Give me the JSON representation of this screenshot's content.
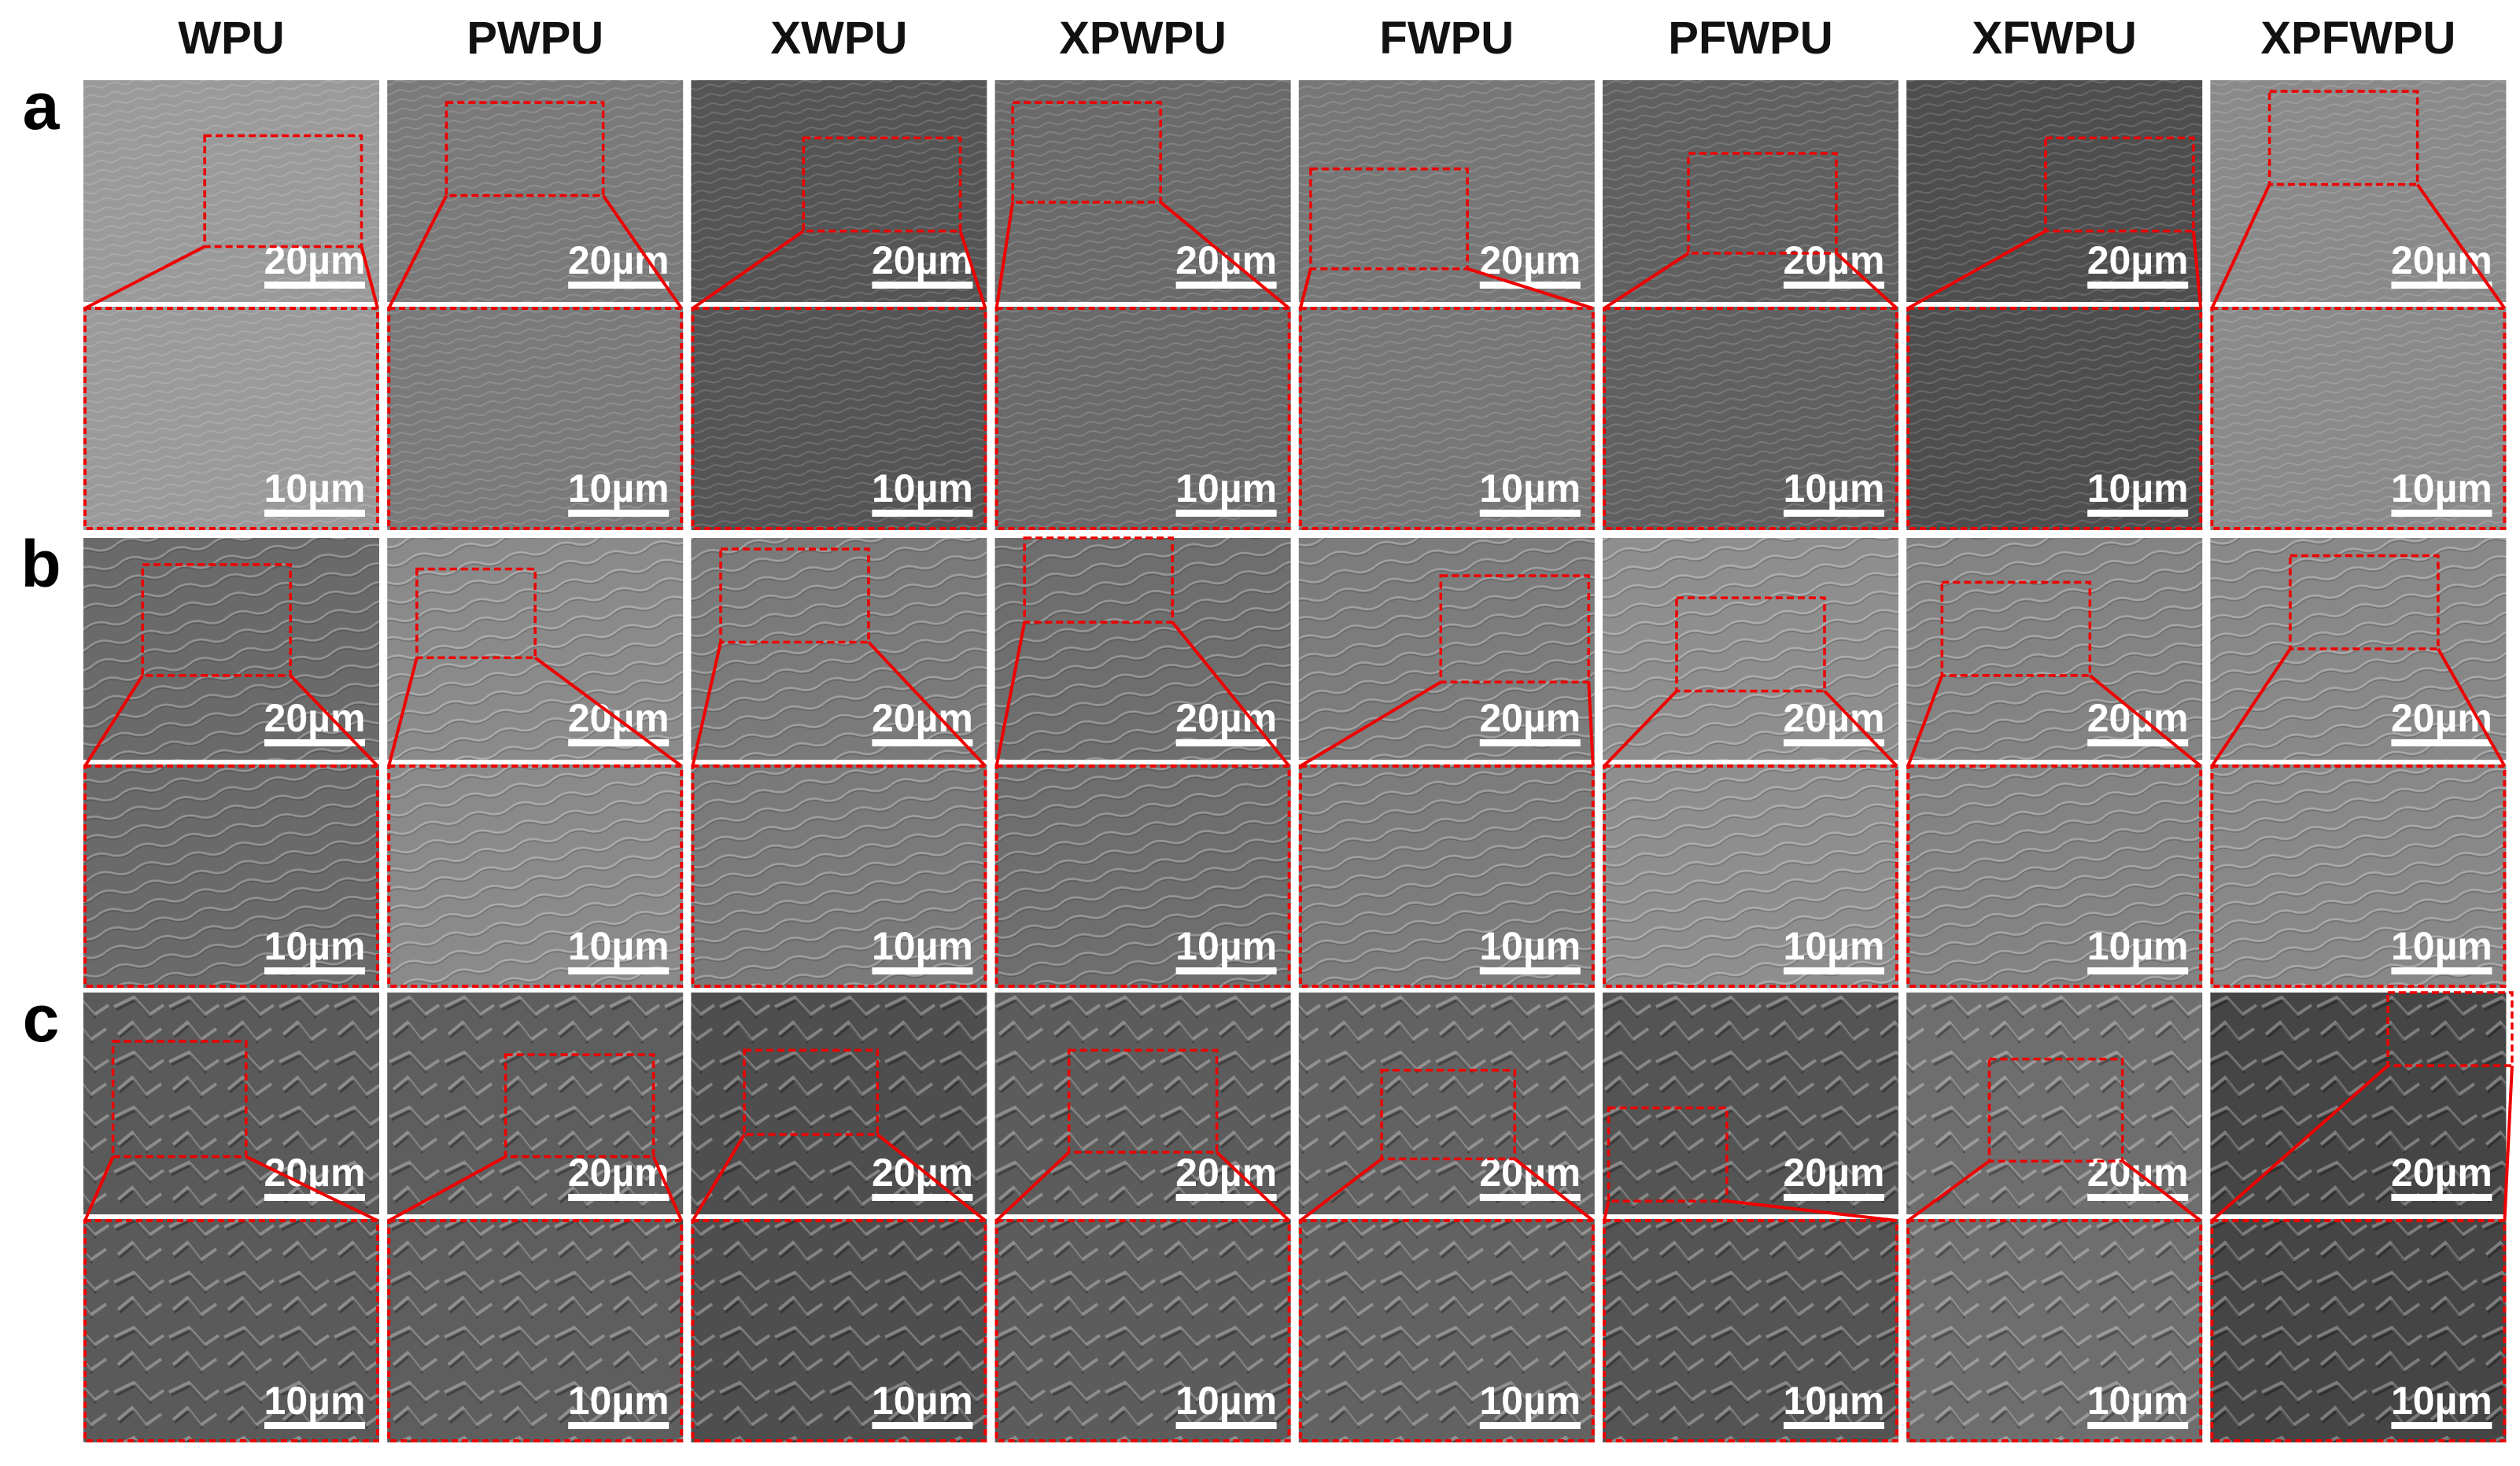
{
  "header": {
    "columns": [
      "WPU",
      "PWPU",
      "XWPU",
      "XPWPU",
      "FWPU",
      "PFWPU",
      "XFWPU",
      "XPFWPU"
    ]
  },
  "rows": [
    {
      "label": "a",
      "scale_bars": [
        "20µm",
        "10µm"
      ]
    },
    {
      "label": "b",
      "scale_bars": [
        "20µm",
        "10µm"
      ]
    },
    {
      "label": "c",
      "scale_bars": [
        "20µm",
        "10µm"
      ]
    }
  ]
}
